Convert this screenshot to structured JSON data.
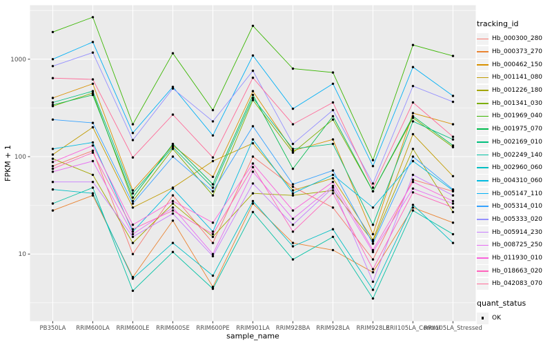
{
  "chart_data": {
    "type": "line",
    "title": "",
    "xlabel": "sample_name",
    "ylabel": "FPKM + 1",
    "y_scale": "log10",
    "ylim": [
      2.1,
      3500
    ],
    "grid": true,
    "legend_position": "right",
    "y_ticks": [
      {
        "label": "10",
        "value": 10
      },
      {
        "label": "100",
        "value": 100
      },
      {
        "label": "1000",
        "value": 1000
      }
    ],
    "y_minor_ticks": [
      3.162,
      31.62,
      316.2,
      3162
    ],
    "categories": [
      "PB350LA",
      "RRIM600LA",
      "RRIM600LE",
      "RRIM600SE",
      "RRIM600PE",
      "RRIM901LA",
      "RRIM928BA",
      "RRIM928LA",
      "RRIM928LE",
      "RRII105LA_Control",
      "RRII105LA_Stressed"
    ],
    "series": [
      {
        "name": "Hb_000300_280",
        "color": "#F8766D",
        "values": [
          80,
          115,
          10,
          40,
          13,
          100,
          49,
          30,
          8.8,
          58,
          44
        ]
      },
      {
        "name": "Hb_000373_270",
        "color": "#EA8331",
        "values": [
          28,
          40,
          5.8,
          22,
          4.6,
          33,
          13,
          11,
          6.5,
          30,
          21
        ]
      },
      {
        "name": "Hb_000462_150",
        "color": "#D89000",
        "values": [
          400,
          560,
          45,
          130,
          62,
          470,
          115,
          150,
          16,
          280,
          215
        ]
      },
      {
        "name": "Hb_001141_080",
        "color": "#C09B00",
        "values": [
          105,
          200,
          30,
          48,
          90,
          137,
          45,
          60,
          14,
          170,
          63
        ]
      },
      {
        "name": "Hb_001226_180",
        "color": "#A3A500",
        "values": [
          95,
          65,
          13,
          33,
          15,
          42,
          40,
          45,
          13.5,
          120,
          27
        ]
      },
      {
        "name": "Hb_001341_030",
        "color": "#7CAE00",
        "values": [
          330,
          450,
          35,
          120,
          40,
          380,
          110,
          240,
          44,
          250,
          125
        ]
      },
      {
        "name": "Hb_001969_040",
        "color": "#39B600",
        "values": [
          1900,
          2700,
          215,
          1150,
          300,
          2200,
          800,
          730,
          92,
          1400,
          1080
        ]
      },
      {
        "name": "Hb_001975_070",
        "color": "#00BB4E",
        "values": [
          340,
          430,
          38,
          135,
          52,
          430,
          75,
          260,
          44,
          260,
          130
        ]
      },
      {
        "name": "Hb_002169_010",
        "color": "#00BF7D",
        "values": [
          360,
          470,
          42,
          125,
          48,
          400,
          120,
          135,
          20,
          230,
          150
        ]
      },
      {
        "name": "Hb_002249_140",
        "color": "#00C1A3",
        "values": [
          33,
          48,
          4.2,
          10.5,
          4.4,
          27,
          8.8,
          15,
          3.5,
          28,
          16
        ]
      },
      {
        "name": "Hb_002960_060",
        "color": "#00BFC4",
        "values": [
          46,
          42,
          5.6,
          13,
          6,
          35,
          12,
          18,
          4.3,
          32,
          13
        ]
      },
      {
        "name": "Hb_004310_060",
        "color": "#00BAE0",
        "values": [
          120,
          140,
          17,
          47,
          17,
          150,
          42,
          65,
          30,
          90,
          45
        ]
      },
      {
        "name": "Hb_005147_110",
        "color": "#00B0F6",
        "values": [
          1000,
          1500,
          175,
          520,
          165,
          1090,
          310,
          560,
          80,
          830,
          420
        ]
      },
      {
        "name": "Hb_005314_010",
        "color": "#35A2FF",
        "values": [
          240,
          222,
          33,
          100,
          44,
          205,
          52,
          72,
          12.8,
          100,
          46
        ]
      },
      {
        "name": "Hb_005333_020",
        "color": "#9590FF",
        "values": [
          850,
          1170,
          148,
          500,
          230,
          760,
          135,
          300,
          53,
          530,
          365
        ]
      },
      {
        "name": "Hb_005914_230",
        "color": "#C77CFF",
        "values": [
          55,
          55,
          15,
          26,
          9.5,
          53,
          20,
          48,
          5.2,
          65,
          40
        ]
      },
      {
        "name": "Hb_008725_250",
        "color": "#E76BF3",
        "values": [
          70,
          90,
          16,
          30,
          10,
          70,
          23,
          50,
          10.5,
          47,
          33
        ]
      },
      {
        "name": "Hb_011930_010",
        "color": "#FA62DB",
        "values": [
          88,
          130,
          20,
          35,
          21,
          85,
          28,
          55,
          11,
          55,
          35
        ]
      },
      {
        "name": "Hb_018663_020",
        "color": "#FF62BC",
        "values": [
          75,
          110,
          18,
          28,
          16,
          78,
          17,
          42,
          7,
          43,
          30
        ]
      },
      {
        "name": "Hb_042083_070",
        "color": "#FF6A98",
        "values": [
          640,
          620,
          98,
          270,
          98,
          645,
          215,
          360,
          48,
          360,
          160
        ]
      }
    ],
    "colors": {
      "panel_bg": "#EBEBEB",
      "grid": "#FFFFFF",
      "point": "#000000",
      "tick_label": "#4D4D4D",
      "tick_mark": "#333333",
      "legend_key_bg": "#F2F2F2"
    }
  },
  "legend": {
    "tracking_title": "tracking_id",
    "quant_title": "quant_status",
    "quant_items": [
      {
        "label": "OK"
      }
    ]
  }
}
